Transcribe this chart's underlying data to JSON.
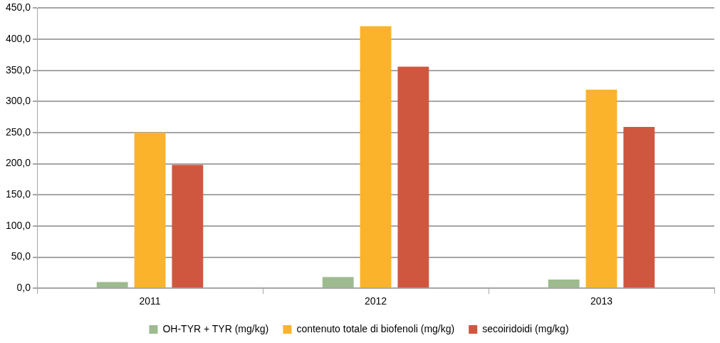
{
  "chart_data": {
    "type": "bar",
    "categories": [
      "2011",
      "2012",
      "2013"
    ],
    "series": [
      {
        "name": "OH-TYR + TYR (mg/kg)",
        "color": "#9dbb8f",
        "values": [
          10,
          18,
          14
        ]
      },
      {
        "name": "contenuto totale di biofenoli (mg/kg)",
        "color": "#fbb32c",
        "values": [
          250,
          421,
          319
        ]
      },
      {
        "name": "secoiridoidi (mg/kg)",
        "color": "#d0573f",
        "values": [
          198,
          356,
          259
        ]
      }
    ],
    "ylim": [
      0,
      450
    ],
    "yticks": [
      {
        "value": 0,
        "label": "0,0"
      },
      {
        "value": 50,
        "label": "50,0"
      },
      {
        "value": 100,
        "label": "100,0"
      },
      {
        "value": 150,
        "label": "150,0"
      },
      {
        "value": 200,
        "label": "200,0"
      },
      {
        "value": 250,
        "label": "250,0"
      },
      {
        "value": 300,
        "label": "300,0"
      },
      {
        "value": 350,
        "label": "350,0"
      },
      {
        "value": 400,
        "label": "400,0"
      },
      {
        "value": 450,
        "label": "450,0"
      }
    ],
    "grid": "y",
    "legend": "bottom"
  }
}
